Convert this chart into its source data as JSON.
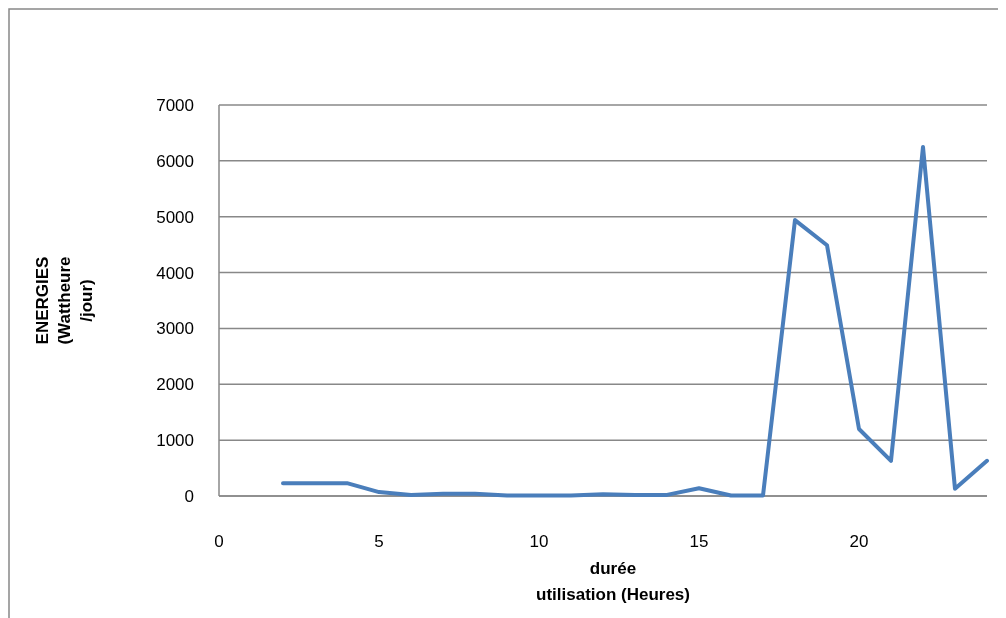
{
  "chart_data": {
    "type": "line",
    "xlabel": "durée\nutilisation (Heures)",
    "ylabel": "ENERGIES\n(Wattheure\n/jour)",
    "x": [
      2,
      3,
      4,
      5,
      6,
      7,
      8,
      9,
      10,
      11,
      12,
      13,
      14,
      15,
      16,
      17,
      18,
      19,
      20,
      21,
      22,
      23,
      24
    ],
    "series": [
      {
        "color": "#4a7ebb",
        "values": [
          230,
          230,
          230,
          70,
          20,
          40,
          40,
          10,
          10,
          10,
          30,
          20,
          20,
          140,
          10,
          10,
          4940,
          4490,
          1200,
          630,
          6250,
          130,
          630
        ]
      }
    ],
    "xlim": [
      0,
      24
    ],
    "xticks": [
      0,
      5,
      10,
      15,
      20
    ],
    "ylim": [
      0,
      7000
    ],
    "yticks": [
      0,
      1000,
      2000,
      3000,
      4000,
      5000,
      6000,
      7000
    ],
    "grid": "y",
    "marker": "none",
    "line_style": "solid"
  }
}
